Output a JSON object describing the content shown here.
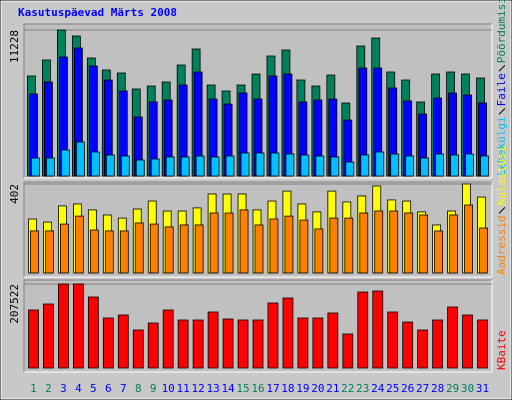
{
  "chart_data": [
    {
      "type": "bar",
      "title": "Kasutuspäevad Märts 2008",
      "ylim": [
        0,
        11228
      ],
      "yticks": [
        11228
      ],
      "series": [
        {
          "name": "Pöördumisi",
          "color": "#00805c",
          "values": [
            7690,
            8920,
            11228,
            10766,
            9074,
            8151,
            7921,
            6690,
            6921,
            7229,
            8536,
            9766,
            6998,
            6537,
            6998,
            7844,
            9228,
            9689,
            7382,
            6921,
            7767,
            5614,
            9997,
            10612,
            7998,
            7382,
            5691,
            7844,
            7998,
            7844,
            7536
          ]
        },
        {
          "name": "Faile",
          "color": "#0000ff",
          "values": [
            6306,
            7229,
            9151,
            9843,
            8459,
            7382,
            6537,
            4537,
            5691,
            5844,
            6998,
            7998,
            5921,
            5537,
            6383,
            5921,
            7690,
            7844,
            5691,
            5844,
            5921,
            4306,
            8305,
            8305,
            6767,
            5768,
            4768,
            5998,
            6383,
            6229,
            5614
          ]
        },
        {
          "name": "Lehekülgi",
          "color": "#00c0ff",
          "values": [
            1384,
            1384,
            1999,
            2615,
            1846,
            1615,
            1538,
            1230,
            1307,
            1461,
            1461,
            1538,
            1461,
            1538,
            1769,
            1769,
            1769,
            1692,
            1615,
            1538,
            1461,
            1077,
            1615,
            1846,
            1692,
            1538,
            1384,
            1692,
            1615,
            1692,
            1538
          ]
        }
      ]
    },
    {
      "type": "bar",
      "ylim": [
        0,
        402
      ],
      "yticks": [
        402
      ],
      "series": [
        {
          "name": "Külastusi",
          "color": "#ffff00",
          "values": [
            244,
            230,
            303,
            312,
            285,
            262,
            248,
            289,
            325,
            280,
            280,
            294,
            357,
            357,
            357,
            285,
            325,
            370,
            312,
            276,
            370,
            321,
            348,
            393,
            330,
            325,
            276,
            217,
            280,
            402,
            343
          ]
        },
        {
          "name": "Aadressid",
          "color": "#ff8000",
          "values": [
            190,
            190,
            221,
            257,
            194,
            190,
            190,
            226,
            221,
            208,
            217,
            217,
            271,
            271,
            285,
            217,
            244,
            257,
            239,
            199,
            248,
            248,
            271,
            280,
            280,
            271,
            262,
            190,
            262,
            307,
            203
          ]
        }
      ]
    },
    {
      "type": "bar",
      "ylim": [
        0,
        207522
      ],
      "yticks": [
        207522
      ],
      "categories": [
        "1",
        "2",
        "3",
        "4",
        "5",
        "6",
        "7",
        "8",
        "9",
        "10",
        "11",
        "12",
        "13",
        "14",
        "15",
        "16",
        "17",
        "18",
        "19",
        "20",
        "21",
        "22",
        "23",
        "24",
        "25",
        "26",
        "27",
        "28",
        "29",
        "30",
        "31"
      ],
      "category_colors": [
        "#00805c",
        "#00805c",
        "#0000ff",
        "#0000ff",
        "#0000ff",
        "#0000ff",
        "#0000ff",
        "#00805c",
        "#00805c",
        "#0000ff",
        "#0000ff",
        "#0000ff",
        "#0000ff",
        "#0000ff",
        "#00805c",
        "#00805c",
        "#0000ff",
        "#0000ff",
        "#0000ff",
        "#0000ff",
        "#0000ff",
        "#00805c",
        "#00805c",
        "#0000ff",
        "#0000ff",
        "#0000ff",
        "#0000ff",
        "#0000ff",
        "#00805c",
        "#00805c",
        "#0000ff"
      ],
      "series": [
        {
          "name": "KBaite",
          "color": "#ff0000",
          "values": [
            143289,
            158112,
            207522,
            207522,
            175406,
            123525,
            130937,
            93879,
            111172,
            143289,
            118584,
            118584,
            138348,
            121055,
            118584,
            118584,
            160583,
            172935,
            123525,
            123525,
            135878,
            83997,
            187758,
            190229,
            138348,
            113643,
            93879,
            118584,
            150701,
            130937,
            118584
          ]
        }
      ]
    }
  ]
}
